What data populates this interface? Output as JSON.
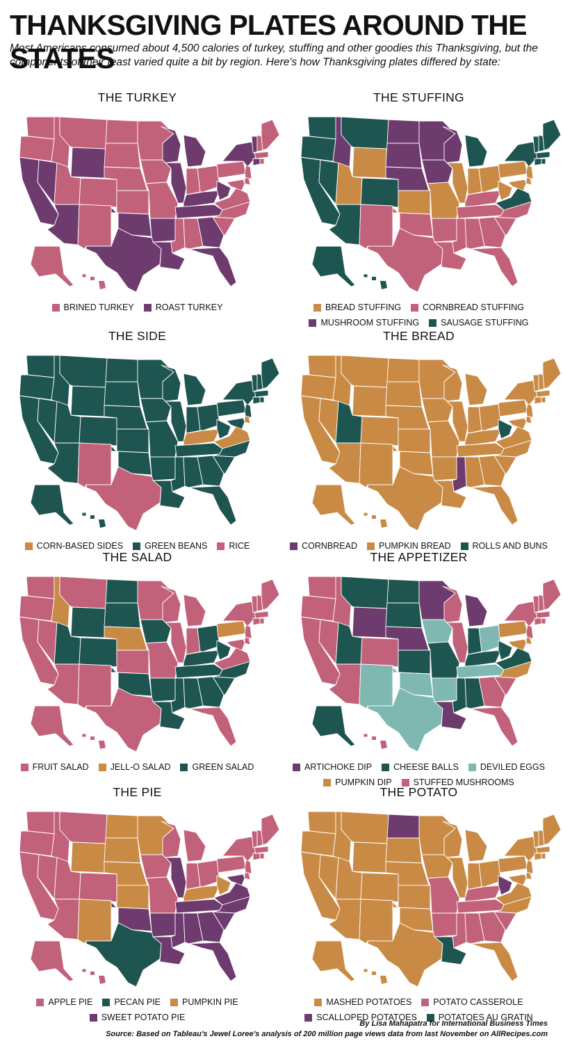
{
  "title": "THANKSGIVING PLATES AROUND THE STATES",
  "subtitle": "Most Americans consumed about 4,500 calories of turkey, stuffing and other goodies this Thanksgiving, but the components of their feast varied quite a bit by region. Here's how Thanksgiving plates differed by state:",
  "colors": {
    "pink": "#c2617a",
    "purple": "#6e3b6e",
    "teal": "#1e5550",
    "orange": "#c98a45",
    "light_teal": "#7eb8b0"
  },
  "panels": [
    {
      "title": "THE TURKEY",
      "legend": [
        {
          "label": "BRINED TURKEY",
          "color": "#c2617a"
        },
        {
          "label": "ROAST TURKEY",
          "color": "#6e3b6e"
        }
      ],
      "default": "#c2617a",
      "states": {
        "CA": "#6e3b6e",
        "NV": "#6e3b6e",
        "AZ": "#6e3b6e",
        "WY": "#6e3b6e",
        "TX": "#6e3b6e",
        "OK": "#6e3b6e",
        "AR": "#6e3b6e",
        "LA": "#6e3b6e",
        "WI": "#6e3b6e",
        "MI": "#6e3b6e",
        "IL": "#6e3b6e",
        "GA": "#6e3b6e",
        "FL": "#6e3b6e",
        "NY": "#6e3b6e",
        "VT": "#6e3b6e",
        "WV": "#6e3b6e",
        "KY": "#6e3b6e",
        "TN": "#6e3b6e",
        "CT": "#6e3b6e"
      }
    },
    {
      "title": "THE STUFFING",
      "legend": [
        {
          "label": "BREAD STUFFING",
          "color": "#c98a45"
        },
        {
          "label": "CORNBREAD STUFFING",
          "color": "#c2617a"
        },
        {
          "label": "MUSHROOM STUFFING",
          "color": "#6e3b6e"
        },
        {
          "label": "SAUSAGE STUFFING",
          "color": "#1e5550"
        }
      ],
      "default": "#c2617a",
      "states": {
        "WA": "#1e5550",
        "OR": "#1e5550",
        "CA": "#1e5550",
        "NV": "#1e5550",
        "AZ": "#1e5550",
        "MT": "#1e5550",
        "CO": "#1e5550",
        "AK": "#1e5550",
        "HI": "#1e5550",
        "MI": "#1e5550",
        "ME": "#1e5550",
        "NH": "#1e5550",
        "VT": "#1e5550",
        "NY": "#1e5550",
        "MA": "#1e5550",
        "VA": "#1e5550",
        "CT": "#1e5550",
        "RI": "#1e5550",
        "ID": "#6e3b6e",
        "ND": "#6e3b6e",
        "SD": "#6e3b6e",
        "MN": "#6e3b6e",
        "NE": "#6e3b6e",
        "IA": "#6e3b6e",
        "WI": "#6e3b6e",
        "WY": "#c98a45",
        "UT": "#c98a45",
        "KS": "#c98a45",
        "MO": "#c98a45",
        "IL": "#c98a45",
        "IN": "#c98a45",
        "OH": "#c98a45",
        "PA": "#c98a45",
        "WV": "#c98a45",
        "NJ": "#c98a45",
        "MD": "#c98a45",
        "DE": "#c98a45"
      }
    },
    {
      "title": "THE SIDE",
      "legend": [
        {
          "label": "CORN-BASED SIDES",
          "color": "#c98a45"
        },
        {
          "label": "GREEN BEANS",
          "color": "#1e5550"
        },
        {
          "label": "RICE",
          "color": "#c2617a"
        }
      ],
      "default": "#1e5550",
      "states": {
        "NM": "#c2617a",
        "TX": "#c2617a",
        "KY": "#c98a45",
        "VA": "#c98a45",
        "DE": "#c98a45"
      }
    },
    {
      "title": "THE BREAD",
      "legend": [
        {
          "label": "CORNBREAD",
          "color": "#6e3b6e"
        },
        {
          "label": "PUMPKIN BREAD",
          "color": "#c98a45"
        },
        {
          "label": "ROLLS AND BUNS",
          "color": "#1e5550"
        }
      ],
      "default": "#c98a45",
      "states": {
        "UT": "#1e5550",
        "WV": "#1e5550",
        "MS": "#6e3b6e"
      }
    },
    {
      "title": "THE SALAD",
      "legend": [
        {
          "label": "FRUIT SALAD",
          "color": "#c2617a"
        },
        {
          "label": "JELL-O SALAD",
          "color": "#c98a45"
        },
        {
          "label": "GREEN SALAD",
          "color": "#1e5550"
        }
      ],
      "default": "#c2617a",
      "states": {
        "ID": "#c98a45",
        "NE": "#c98a45",
        "PA": "#c98a45",
        "WY": "#1e5550",
        "UT": "#1e5550",
        "CO": "#1e5550",
        "ND": "#1e5550",
        "SD": "#1e5550",
        "IA": "#1e5550",
        "OK": "#1e5550",
        "AR": "#1e5550",
        "LA": "#1e5550",
        "MS": "#1e5550",
        "AL": "#1e5550",
        "GA": "#1e5550",
        "TN": "#1e5550",
        "KY": "#1e5550",
        "NC": "#1e5550",
        "SC": "#1e5550",
        "WV": "#1e5550",
        "OH": "#1e5550"
      }
    },
    {
      "title": "THE APPETIZER",
      "legend": [
        {
          "label": "ARTICHOKE DIP",
          "color": "#6e3b6e"
        },
        {
          "label": "CHEESE BALLS",
          "color": "#1e5550"
        },
        {
          "label": "DEVILED EGGS",
          "color": "#7eb8b0"
        },
        {
          "label": "PUMPKIN DIP",
          "color": "#c98a45"
        },
        {
          "label": "STUFFED MUSHROOMS",
          "color": "#c2617a"
        }
      ],
      "default": "#c2617a",
      "states": {
        "MT": "#1e5550",
        "ND": "#1e5550",
        "UT": "#1e5550",
        "SD": "#1e5550",
        "KS": "#1e5550",
        "MO": "#1e5550",
        "IN": "#1e5550",
        "KY": "#1e5550",
        "MS": "#1e5550",
        "AL": "#1e5550",
        "WV": "#1e5550",
        "VA": "#1e5550",
        "AK": "#1e5550",
        "WY": "#6e3b6e",
        "MN": "#6e3b6e",
        "NE": "#6e3b6e",
        "MI": "#6e3b6e",
        "LA": "#6e3b6e",
        "IA": "#7eb8b0",
        "OH": "#7eb8b0",
        "NM": "#7eb8b0",
        "TX": "#7eb8b0",
        "OK": "#7eb8b0",
        "AR": "#7eb8b0",
        "TN": "#7eb8b0",
        "PA": "#c98a45",
        "NC": "#c98a45",
        "MD": "#c98a45",
        "DE": "#c98a45"
      }
    },
    {
      "title": "THE PIE",
      "legend": [
        {
          "label": "APPLE PIE",
          "color": "#c2617a"
        },
        {
          "label": "PECAN PIE",
          "color": "#1e5550"
        },
        {
          "label": "PUMPKIN PIE",
          "color": "#c98a45"
        },
        {
          "label": "SWEET POTATO PIE",
          "color": "#6e3b6e"
        }
      ],
      "default": "#c2617a",
      "states": {
        "TX": "#1e5550",
        "WY": "#c98a45",
        "ND": "#c98a45",
        "SD": "#c98a45",
        "NE": "#c98a45",
        "KS": "#c98a45",
        "NM": "#c98a45",
        "MN": "#c98a45",
        "KY": "#c98a45",
        "WV": "#c98a45",
        "OK": "#6e3b6e",
        "AR": "#6e3b6e",
        "LA": "#6e3b6e",
        "MS": "#6e3b6e",
        "AL": "#6e3b6e",
        "GA": "#6e3b6e",
        "FL": "#6e3b6e",
        "TN": "#6e3b6e",
        "SC": "#6e3b6e",
        "NC": "#6e3b6e",
        "VA": "#6e3b6e",
        "IL": "#6e3b6e",
        "MD": "#6e3b6e"
      }
    },
    {
      "title": "THE POTATO",
      "legend": [
        {
          "label": "MASHED POTATOES",
          "color": "#c98a45"
        },
        {
          "label": "POTATO CASSEROLE",
          "color": "#c2617a"
        },
        {
          "label": "SCALLOPED POTATOES",
          "color": "#6e3b6e"
        },
        {
          "label": "POTATOES AU GRATIN",
          "color": "#1e5550"
        }
      ],
      "default": "#c98a45",
      "states": {
        "ND": "#6e3b6e",
        "WV": "#6e3b6e",
        "LA": "#1e5550",
        "MO": "#c2617a",
        "AR": "#c2617a",
        "MS": "#c2617a",
        "AL": "#c2617a",
        "GA": "#c2617a",
        "TN": "#c2617a",
        "KY": "#c2617a",
        "SC": "#c2617a"
      }
    }
  ],
  "credit": {
    "byline": "By Lisa Mahapatra for International Business Times",
    "source": "Source: Based on Tableau's Jewel Loree's analysis of 200 million page views data from last November on AllRecipes.com"
  }
}
